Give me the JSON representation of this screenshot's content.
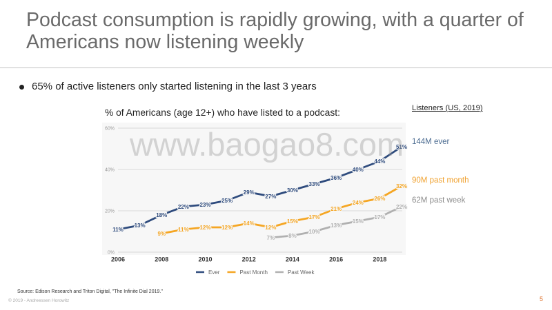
{
  "slide": {
    "title": "Podcast consumption is rapidly growing, with a quarter of Americans now listening weekly",
    "bullet": "65% of active listeners only started listening in the last 3 years",
    "source": "Source: Edison Research and Triton Digital, \"The Infinite Dial 2019.\"",
    "copyright": "© 2019 - Andreessen Horowitz",
    "page_number": "5",
    "watermark": "www.baogao8.com"
  },
  "listeners": {
    "heading": "Listeners (US, 2019)",
    "ever": {
      "text": "144M ever",
      "color": "#4d6d92"
    },
    "past_month": {
      "text": "90M past month",
      "color": "#f0a12e"
    },
    "past_week": {
      "text": "62M past week",
      "color": "#8c8c8c"
    }
  },
  "chart_data": {
    "type": "line",
    "title": "% of Americans (age 12+) who have listed to a podcast:",
    "unit": "%",
    "x": [
      2006,
      2007,
      2008,
      2009,
      2010,
      2011,
      2012,
      2013,
      2014,
      2015,
      2016,
      2017,
      2018,
      2019
    ],
    "xlim": [
      2006,
      2019
    ],
    "x_tick_labels": [
      2006,
      2008,
      2010,
      2012,
      2014,
      2016,
      2018
    ],
    "ylim": [
      0,
      60
    ],
    "y_ticks": [
      0,
      20,
      40,
      60
    ],
    "grid": true,
    "data_labels": true,
    "legend_position": "bottom",
    "series": [
      {
        "name": "Ever",
        "color": "#2e4b7d",
        "values": [
          11,
          13,
          18,
          22,
          23,
          25,
          29,
          27,
          30,
          33,
          36,
          40,
          44,
          51
        ]
      },
      {
        "name": "Past Month",
        "color": "#f5a623",
        "values": [
          null,
          null,
          9,
          11,
          12,
          12,
          14,
          12,
          15,
          17,
          21,
          24,
          26,
          32
        ]
      },
      {
        "name": "Past Week",
        "color": "#b0b0b0",
        "values": [
          null,
          null,
          null,
          null,
          null,
          null,
          null,
          7,
          8,
          10,
          13,
          15,
          17,
          22
        ]
      }
    ]
  }
}
